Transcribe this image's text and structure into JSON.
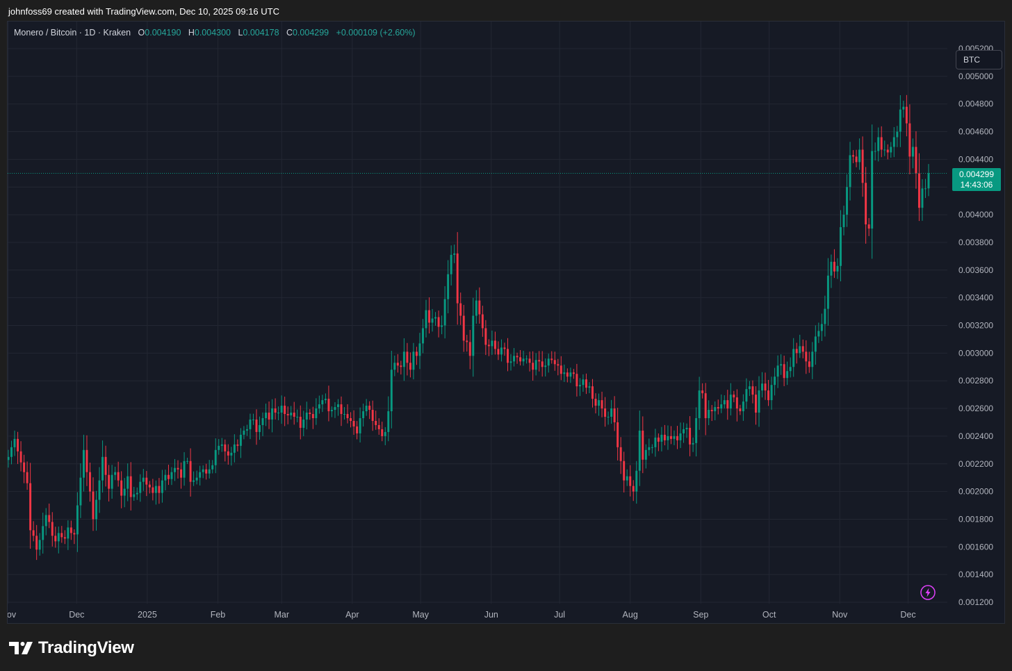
{
  "header": {
    "credit": "johnfoss69 created with TradingView.com, Dec 10, 2025 09:16 UTC"
  },
  "legend": {
    "symbol": "Monero / Bitcoin · 1D · Kraken",
    "o_label": "O",
    "o_value": "0.004190",
    "h_label": "H",
    "h_value": "0.004300",
    "l_label": "L",
    "l_value": "0.004178",
    "c_label": "C",
    "c_value": "0.004299",
    "change": "+0.000109 (+2.60%)"
  },
  "currency_badge": "BTC",
  "last_price": {
    "value": "0.004299",
    "countdown": "14:43:06"
  },
  "footer": {
    "brand": "TradingView"
  },
  "colors": {
    "up": "#089981",
    "down": "#f23645",
    "background": "#161a25",
    "grid": "#232733"
  },
  "icons": {
    "bolt": "lightning-bolt-icon",
    "logo": "tradingview-logo-icon"
  },
  "chart_data": {
    "type": "candlestick",
    "title": "Monero / Bitcoin · 1D · Kraken",
    "ylim": [
      0.0012,
      0.0052
    ],
    "y_ticks": [
      "0.005200",
      "0.005000",
      "0.004800",
      "0.004600",
      "0.004400",
      "0.004200",
      "0.004000",
      "0.003800",
      "0.003600",
      "0.003400",
      "0.003200",
      "0.003000",
      "0.002800",
      "0.002600",
      "0.002400",
      "0.002200",
      "0.002000",
      "0.001800",
      "0.001600",
      "0.001400",
      "0.001200"
    ],
    "x_ticks": [
      "Nov",
      "Dec",
      "2025",
      "Feb",
      "Mar",
      "Apr",
      "May",
      "Jun",
      "Jul",
      "Aug",
      "Sep",
      "Oct",
      "Nov",
      "Dec"
    ],
    "x_tick_dates": [
      "2024-11-01",
      "2024-12-01",
      "2025-01-01",
      "2025-02-01",
      "2025-03-01",
      "2025-04-01",
      "2025-05-01",
      "2025-06-01",
      "2025-07-01",
      "2025-08-01",
      "2025-09-01",
      "2025-10-01",
      "2025-11-01",
      "2025-12-01"
    ],
    "date_range": [
      "2024-11-01",
      "2025-12-10"
    ],
    "last_close": 0.004299,
    "closes": [
      0.00225,
      0.00232,
      0.00238,
      0.00229,
      0.00221,
      0.00214,
      0.00206,
      0.00172,
      0.00168,
      0.00158,
      0.00165,
      0.00175,
      0.00183,
      0.00178,
      0.00168,
      0.00164,
      0.0017,
      0.00167,
      0.00166,
      0.00174,
      0.0017,
      0.00169,
      0.0019,
      0.0021,
      0.0023,
      0.00214,
      0.002,
      0.0018,
      0.00194,
      0.00208,
      0.00225,
      0.00212,
      0.00202,
      0.00212,
      0.00214,
      0.00208,
      0.00197,
      0.00202,
      0.00211,
      0.00196,
      0.00198,
      0.00199,
      0.00207,
      0.0021,
      0.00205,
      0.00203,
      0.00199,
      0.00204,
      0.00199,
      0.00208,
      0.00212,
      0.00209,
      0.00214,
      0.00217,
      0.00216,
      0.0021,
      0.00222,
      0.00222,
      0.00207,
      0.00208,
      0.0021,
      0.00214,
      0.00216,
      0.00213,
      0.00216,
      0.00219,
      0.0023,
      0.00233,
      0.00234,
      0.00229,
      0.00226,
      0.00228,
      0.00234,
      0.00233,
      0.00241,
      0.00244,
      0.00245,
      0.00252,
      0.00252,
      0.00243,
      0.00248,
      0.00253,
      0.00257,
      0.00252,
      0.0026,
      0.00257,
      0.00257,
      0.00262,
      0.00256,
      0.00255,
      0.00257,
      0.00254,
      0.00254,
      0.00246,
      0.00252,
      0.00257,
      0.00256,
      0.00253,
      0.0026,
      0.00263,
      0.00266,
      0.00267,
      0.00258,
      0.00259,
      0.00261,
      0.00263,
      0.00256,
      0.00256,
      0.00253,
      0.00251,
      0.00247,
      0.00242,
      0.00253,
      0.00258,
      0.00262,
      0.00259,
      0.00251,
      0.00248,
      0.00245,
      0.0024,
      0.00243,
      0.00258,
      0.00288,
      0.00293,
      0.00291,
      0.0029,
      0.00301,
      0.00293,
      0.00288,
      0.00301,
      0.00298,
      0.00307,
      0.00318,
      0.00331,
      0.00322,
      0.00325,
      0.00326,
      0.00319,
      0.0032,
      0.00339,
      0.00357,
      0.00371,
      0.00372,
      0.00336,
      0.00327,
      0.00309,
      0.00308,
      0.00298,
      0.00327,
      0.00338,
      0.00328,
      0.00318,
      0.00306,
      0.00305,
      0.00309,
      0.00303,
      0.00299,
      0.00304,
      0.00303,
      0.00293,
      0.00294,
      0.00298,
      0.00297,
      0.00294,
      0.00296,
      0.00296,
      0.00293,
      0.00288,
      0.00295,
      0.00294,
      0.0029,
      0.00291,
      0.00296,
      0.00295,
      0.00292,
      0.00291,
      0.00285,
      0.00286,
      0.00283,
      0.00286,
      0.00285,
      0.00276,
      0.00277,
      0.00281,
      0.00275,
      0.00276,
      0.00267,
      0.00262,
      0.00266,
      0.0026,
      0.00254,
      0.00254,
      0.0026,
      0.0025,
      0.00232,
      0.00222,
      0.00208,
      0.00211,
      0.00204,
      0.002,
      0.00215,
      0.00244,
      0.00223,
      0.0023,
      0.00232,
      0.00232,
      0.00239,
      0.00236,
      0.00241,
      0.00237,
      0.0024,
      0.00238,
      0.0024,
      0.00237,
      0.00242,
      0.00245,
      0.00246,
      0.00234,
      0.00235,
      0.00253,
      0.00273,
      0.00271,
      0.00253,
      0.00259,
      0.00258,
      0.00261,
      0.0026,
      0.00263,
      0.00266,
      0.0026,
      0.0027,
      0.00268,
      0.0026,
      0.00258,
      0.00265,
      0.00274,
      0.00276,
      0.0027,
      0.00257,
      0.00273,
      0.00278,
      0.00273,
      0.00266,
      0.00277,
      0.00283,
      0.00291,
      0.00292,
      0.00282,
      0.00287,
      0.0029,
      0.00303,
      0.003,
      0.00305,
      0.00301,
      0.00294,
      0.0029,
      0.00301,
      0.00312,
      0.00316,
      0.00321,
      0.00332,
      0.00356,
      0.00366,
      0.00359,
      0.00363,
      0.00391,
      0.004,
      0.0042,
      0.00443,
      0.00442,
      0.00438,
      0.00447,
      0.00423,
      0.00393,
      0.0039,
      0.00446,
      0.00446,
      0.00456,
      0.00447,
      0.00447,
      0.00445,
      0.00449,
      0.00456,
      0.0046,
      0.00476,
      0.00478,
      0.00466,
      0.00442,
      0.00449,
      0.0043,
      0.00405,
      0.00419,
      0.00419,
      0.0043
    ]
  }
}
